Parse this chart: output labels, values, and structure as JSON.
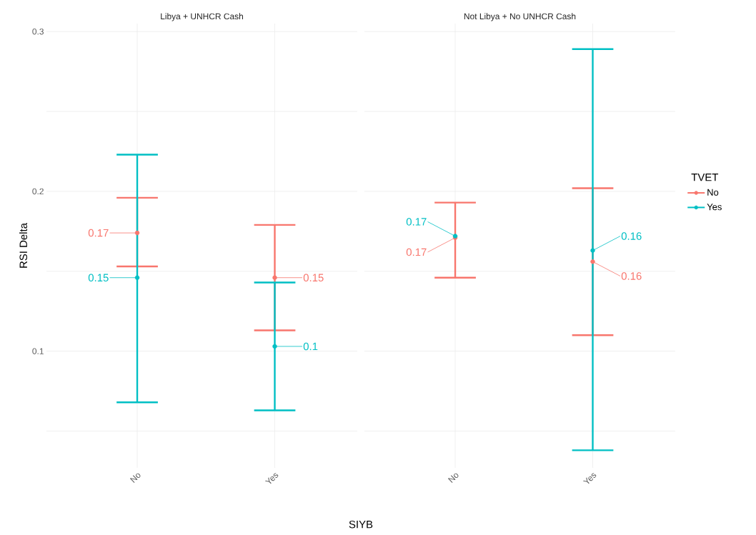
{
  "chart_data": [
    {
      "type": "scatter",
      "title": "Libya + UNHCR Cash",
      "xlabel": "SIYB",
      "ylabel": "RSI Delta",
      "categories": [
        "No",
        "Yes"
      ],
      "ylim": [
        0.027,
        0.305
      ],
      "yticks": [
        {
          "value": 0.05,
          "label": null
        },
        0.1,
        {
          "value": 0.15,
          "label": null
        },
        0.2,
        {
          "value": 0.25,
          "label": null
        },
        0.3
      ],
      "grid": true,
      "marker": "circle",
      "series": [
        {
          "color": "#f8766d",
          "values": [
            0.174,
            0.146
          ],
          "errors": [
            [
              0.153,
              0.196
            ],
            [
              0.113,
              0.179
            ]
          ],
          "value_labels": [
            "0.17",
            "0.15"
          ]
        },
        {
          "color": "#00bfc4",
          "values": [
            0.146,
            0.103
          ],
          "errors": [
            [
              0.068,
              0.223
            ],
            [
              0.063,
              0.143
            ]
          ],
          "value_labels": [
            "0.15",
            "0.1"
          ]
        }
      ]
    },
    {
      "type": "scatter",
      "title": "Not Libya + No UNHCR Cash",
      "categories": [
        "No",
        "Yes"
      ],
      "ylim": [
        0.027,
        0.305
      ],
      "yticks": [
        {
          "value": 0.05,
          "label": null
        },
        0.1,
        {
          "value": 0.15,
          "label": null
        },
        0.2,
        {
          "value": 0.25,
          "label": null
        },
        0.3
      ],
      "grid": true,
      "marker": "circle",
      "tick_labels": "x",
      "legend": "right",
      "legend_title": "TVET",
      "series": [
        {
          "name": "No",
          "color": "#f8766d",
          "values": [
            0.171,
            0.156
          ],
          "errors": [
            [
              0.146,
              0.193
            ],
            [
              0.11,
              0.202
            ]
          ],
          "value_labels": [
            "0.17",
            "0.16"
          ]
        },
        {
          "name": "Yes",
          "color": "#00bfc4",
          "values": [
            0.172,
            0.163
          ],
          "errors": [
            null,
            [
              0.038,
              0.289
            ]
          ],
          "value_labels": [
            "0.17",
            "0.16"
          ]
        }
      ]
    }
  ]
}
